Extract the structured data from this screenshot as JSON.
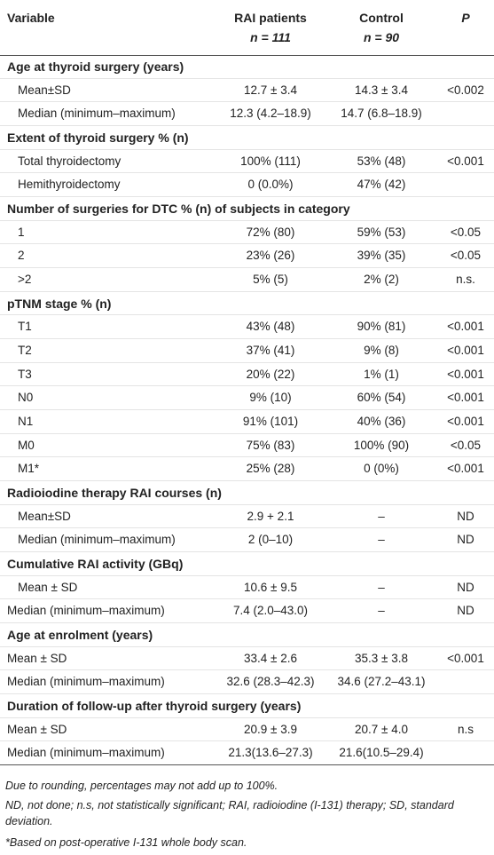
{
  "table": {
    "header": {
      "variable": "Variable",
      "rai": "RAI patients",
      "rai_n": "n = 111",
      "control": "Control",
      "control_n": "n = 90",
      "p": "P"
    },
    "sections": [
      {
        "title": "Age at thyroid surgery (years)",
        "rows": [
          [
            "Mean±SD",
            "12.7 ± 3.4",
            "14.3 ± 3.4",
            "<0.002"
          ],
          [
            "Median (minimum–maximum)",
            "12.3 (4.2–18.9)",
            "14.7 (6.8–18.9)",
            ""
          ]
        ]
      },
      {
        "title": "Extent of thyroid surgery % (n)",
        "rows": [
          [
            "Total thyroidectomy",
            "100% (111)",
            "53% (48)",
            "<0.001"
          ],
          [
            "Hemithyroidectomy",
            "0 (0.0%)",
            "47% (42)",
            ""
          ]
        ]
      },
      {
        "title": "Number of surgeries for DTC % (n) of subjects in category",
        "rows": [
          [
            "1",
            "72% (80)",
            "59% (53)",
            "<0.05"
          ],
          [
            "2",
            "23% (26)",
            "39% (35)",
            "<0.05"
          ],
          [
            ">2",
            "5% (5)",
            "2% (2)",
            "n.s."
          ]
        ]
      },
      {
        "title": "pTNM stage % (n)",
        "rows": [
          [
            "T1",
            "43% (48)",
            "90% (81)",
            "<0.001"
          ],
          [
            "T2",
            "37% (41)",
            "9% (8)",
            "<0.001"
          ],
          [
            "T3",
            "20% (22)",
            "1% (1)",
            "<0.001"
          ],
          [
            "N0",
            "9% (10)",
            "60% (54)",
            "<0.001"
          ],
          [
            "N1",
            "91% (101)",
            "40% (36)",
            "<0.001"
          ],
          [
            "M0",
            "75% (83)",
            "100% (90)",
            "<0.05"
          ],
          [
            "M1*",
            "25% (28)",
            "0 (0%)",
            "<0.001"
          ]
        ]
      },
      {
        "title": "Radioiodine therapy RAI courses (n)",
        "rows": [
          [
            "Mean±SD",
            "2.9 + 2.1",
            "–",
            "ND"
          ],
          [
            "Median (minimum–maximum)",
            "2 (0–10)",
            "–",
            "ND"
          ]
        ]
      },
      {
        "title": "Cumulative RAI activity (GBq)",
        "rows": [
          [
            "Mean ± SD",
            "10.6 ± 9.5",
            "–",
            "ND"
          ],
          [
            "Median (minimum–maximum)",
            "7.4 (2.0–43.0)",
            "–",
            "ND"
          ]
        ]
      },
      {
        "title": "Age at enrolment (years)",
        "rows": [
          [
            "Mean ± SD",
            "33.4 ± 2.6",
            "35.3 ± 3.8",
            "<0.001"
          ],
          [
            "Median (minimum–maximum)",
            "32.6 (28.3–42.3)",
            "34.6 (27.2–43.1)",
            ""
          ]
        ]
      },
      {
        "title": "Duration of follow-up after thyroid surgery (years)",
        "rows": [
          [
            "Mean ± SD",
            "20.9 ± 3.9",
            "20.7 ± 4.0",
            "n.s"
          ],
          [
            "Median (minimum–maximum)",
            "21.3(13.6–27.3)",
            "21.6(10.5–29.4)",
            ""
          ]
        ]
      }
    ],
    "footnotes": [
      "Due to rounding, percentages may not add up to 100%.",
      "ND, not done; n.s, not statistically significant; RAI, radioiodine (I-131) therapy; SD, standard deviation.",
      "*Based on post-operative I-131 whole body scan."
    ]
  }
}
